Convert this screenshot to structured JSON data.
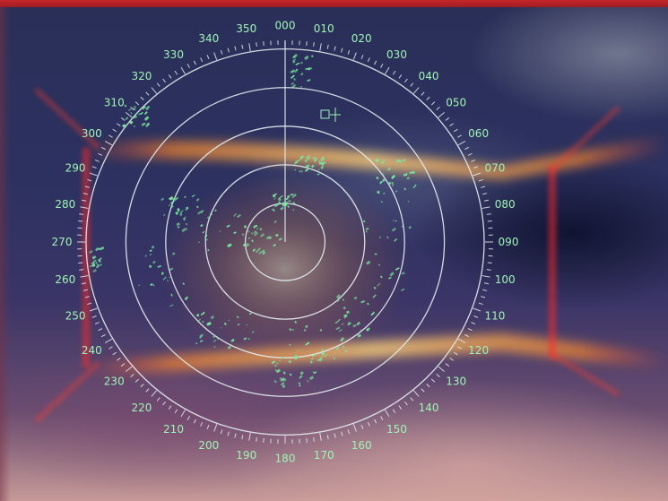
{
  "radar": {
    "bearing_labels": [
      "000",
      "010",
      "020",
      "030",
      "040",
      "050",
      "060",
      "070",
      "080",
      "090",
      "100",
      "110",
      "120",
      "130",
      "140",
      "150",
      "160",
      "170",
      "180",
      "190",
      "200",
      "210",
      "220",
      "230",
      "240",
      "250",
      "260",
      "270",
      "280",
      "290",
      "300",
      "310",
      "320",
      "330",
      "340",
      "350"
    ],
    "range_ring_count": 5,
    "colors": {
      "echo": "#7be7a0",
      "ring": "#e6eef2",
      "scale_text": "#9ff3b6",
      "glow": "#ffb347",
      "red_flare": "#ff3b2f",
      "top_bar": "#c4262a"
    }
  }
}
